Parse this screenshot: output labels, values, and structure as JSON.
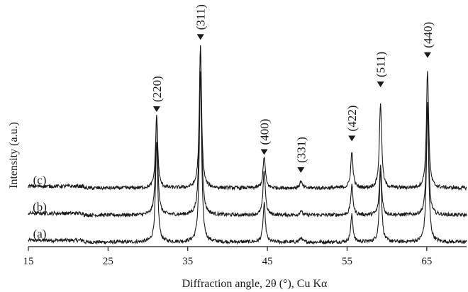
{
  "chart_data": {
    "type": "line",
    "xlabel": "Diffraction angle, 2θ (°), Cu Kα",
    "ylabel": "Intensity (a.u.)",
    "xlim": [
      15,
      70
    ],
    "x_ticks": [
      15,
      25,
      35,
      45,
      55,
      65
    ],
    "ylim": [
      0,
      100
    ],
    "grid": false,
    "series": [
      {
        "name": "(a)",
        "baseline": 2,
        "peaks": [
          {
            "x": 31.1,
            "height": 44
          },
          {
            "x": 36.6,
            "height": 75
          },
          {
            "x": 44.6,
            "height": 17
          },
          {
            "x": 49.2,
            "height": 2
          },
          {
            "x": 55.6,
            "height": 12
          },
          {
            "x": 59.2,
            "height": 32
          },
          {
            "x": 65.1,
            "height": 60
          }
        ]
      },
      {
        "name": "(b)",
        "baseline": 14,
        "peaks": [
          {
            "x": 31.1,
            "height": 44
          },
          {
            "x": 36.6,
            "height": 75
          },
          {
            "x": 44.6,
            "height": 20
          },
          {
            "x": 49.2,
            "height": 2
          },
          {
            "x": 55.6,
            "height": 13
          },
          {
            "x": 59.2,
            "height": 22
          },
          {
            "x": 65.1,
            "height": 50
          }
        ]
      },
      {
        "name": "(c)",
        "baseline": 26,
        "peaks": [
          {
            "x": 31.1,
            "height": 32
          },
          {
            "x": 36.6,
            "height": 63
          },
          {
            "x": 44.6,
            "height": 14
          },
          {
            "x": 49.2,
            "height": 3
          },
          {
            "x": 55.6,
            "height": 16
          },
          {
            "x": 59.2,
            "height": 38
          },
          {
            "x": 65.1,
            "height": 52
          }
        ]
      }
    ],
    "peak_labels": [
      {
        "label": "(220)",
        "x": 31.1,
        "y": 61
      },
      {
        "label": "(311)",
        "x": 36.6,
        "y": 93
      },
      {
        "label": "(400)",
        "x": 44.6,
        "y": 42
      },
      {
        "label": "(331)",
        "x": 49.2,
        "y": 34
      },
      {
        "label": "(422)",
        "x": 55.6,
        "y": 48
      },
      {
        "label": "(511)",
        "x": 59.2,
        "y": 72
      },
      {
        "label": "(440)",
        "x": 65.1,
        "y": 85
      }
    ]
  }
}
